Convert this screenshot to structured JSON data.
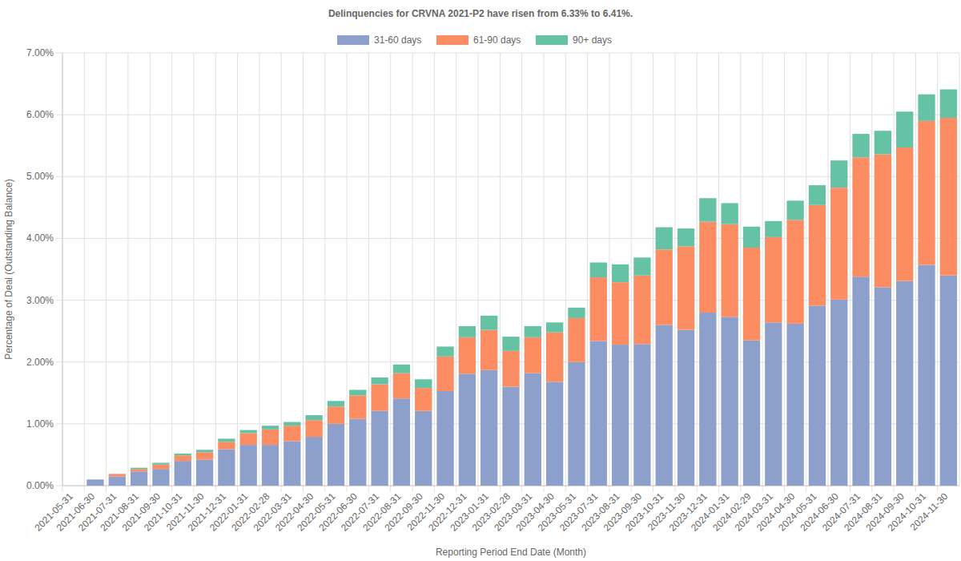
{
  "chart_data": {
    "type": "bar",
    "stacked": true,
    "grid": true,
    "legend": "top",
    "title": "Delinquencies for CRVNA 2021-P2 have risen from 6.33% to 6.41%.",
    "x_label": "Reporting Period End Date (Month)",
    "y_label": "Percentage of Deal (Outstanding Balance)",
    "categories": [
      "2021-05-31",
      "2021-06-30",
      "2021-07-31",
      "2021-08-31",
      "2021-09-30",
      "2021-10-31",
      "2021-11-30",
      "2021-12-31",
      "2022-01-31",
      "2022-02-28",
      "2022-03-31",
      "2022-04-30",
      "2022-05-31",
      "2022-06-30",
      "2022-07-31",
      "2022-08-31",
      "2022-09-30",
      "2022-11-30",
      "2022-12-31",
      "2023-01-31",
      "2023-02-28",
      "2023-03-31",
      "2023-04-30",
      "2023-05-31",
      "2023-07-31",
      "2023-08-31",
      "2023-09-30",
      "2023-10-31",
      "2023-11-30",
      "2023-12-31",
      "2024-01-31",
      "2024-02-29",
      "2024-03-31",
      "2024-04-30",
      "2024-05-31",
      "2024-06-30",
      "2024-07-31",
      "2024-08-31",
      "2024-09-30",
      "2024-10-31",
      "2024-11-30"
    ],
    "series": [
      {
        "name": "31-60 days",
        "color": "#8da0cb",
        "values": [
          0,
          0.1,
          0.15,
          0.23,
          0.27,
          0.4,
          0.42,
          0.59,
          0.66,
          0.66,
          0.72,
          0.79,
          1.0,
          1.08,
          1.21,
          1.41,
          1.21,
          1.53,
          1.81,
          1.87,
          1.6,
          1.82,
          1.68,
          2.0,
          2.34,
          2.28,
          2.29,
          2.6,
          2.52,
          2.8,
          2.73,
          2.35,
          2.64,
          2.62,
          2.91,
          3.01,
          3.38,
          3.21,
          3.31,
          3.57,
          3.4
        ]
      },
      {
        "name": "61-90 days",
        "color": "#fc8d62",
        "values": [
          0,
          0.0,
          0.04,
          0.04,
          0.07,
          0.09,
          0.12,
          0.12,
          0.19,
          0.25,
          0.25,
          0.27,
          0.28,
          0.38,
          0.43,
          0.41,
          0.37,
          0.56,
          0.59,
          0.65,
          0.58,
          0.58,
          0.8,
          0.71,
          1.03,
          1.01,
          1.11,
          1.22,
          1.35,
          1.47,
          1.5,
          1.5,
          1.38,
          1.68,
          1.63,
          1.81,
          1.93,
          2.15,
          2.16,
          2.33,
          2.55
        ]
      },
      {
        "name": "90+ days",
        "color": "#66c2a5",
        "values": [
          0,
          0.0,
          0.0,
          0.02,
          0.03,
          0.03,
          0.04,
          0.05,
          0.05,
          0.06,
          0.06,
          0.08,
          0.09,
          0.09,
          0.11,
          0.14,
          0.14,
          0.16,
          0.18,
          0.23,
          0.23,
          0.18,
          0.16,
          0.17,
          0.24,
          0.29,
          0.29,
          0.36,
          0.29,
          0.38,
          0.34,
          0.34,
          0.26,
          0.31,
          0.32,
          0.44,
          0.38,
          0.38,
          0.58,
          0.43,
          0.46
        ]
      }
    ],
    "ylim": [
      0,
      7
    ],
    "yticks": [
      {
        "value": 0,
        "label": "0.00%"
      },
      {
        "value": 1,
        "label": "1.00%"
      },
      {
        "value": 2,
        "label": "2.00%"
      },
      {
        "value": 3,
        "label": "3.00%"
      },
      {
        "value": 4,
        "label": "4.00%"
      },
      {
        "value": 5,
        "label": "5.00%"
      },
      {
        "value": 6,
        "label": "6.00%"
      },
      {
        "value": 7,
        "label": "7.00%"
      }
    ]
  }
}
